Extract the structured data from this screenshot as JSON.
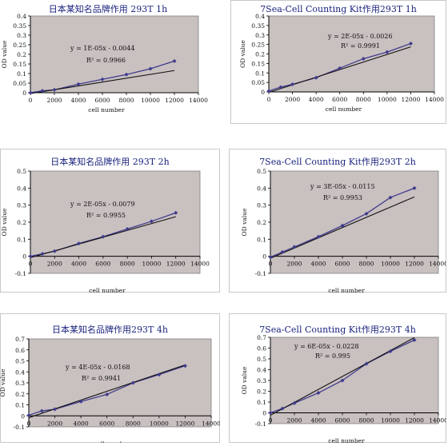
{
  "chart_data": [
    {
      "type": "scatter",
      "title": "日本某知名品牌作用 293T 1h",
      "xlabel": "cell number",
      "ylabel": "OD value",
      "xlim": [
        0,
        14000
      ],
      "ylim": [
        0,
        0.4
      ],
      "xticks": [
        0,
        2000,
        4000,
        6000,
        8000,
        10000,
        12000,
        14000
      ],
      "yticks": [
        0,
        0.05,
        0.1,
        0.15,
        0.2,
        0.25,
        0.3,
        0.35,
        0.4
      ],
      "ytick_labels": [
        "0",
        "0.05",
        "0.1",
        "0.15",
        "0.2",
        "0.25",
        "0.3",
        "0.35",
        "0.4"
      ],
      "x": [
        0,
        1000,
        2000,
        4000,
        6000,
        8000,
        10000,
        12000
      ],
      "y": [
        0,
        0.01,
        0.015,
        0.045,
        0.07,
        0.095,
        0.125,
        0.165
      ],
      "trendline": {
        "slope": 1e-05,
        "intercept": -0.0044
      },
      "equation": "y = 1E-05x - 0.0044",
      "r2": "R² = 0.9966",
      "grid": false
    },
    {
      "type": "scatter",
      "title": "7Sea-Cell Counting Kit作用293T 1h",
      "xlabel": "cell number",
      "ylabel": "OD value",
      "xlim": [
        0,
        14000
      ],
      "ylim": [
        0,
        0.4
      ],
      "xticks": [
        0,
        2000,
        4000,
        6000,
        8000,
        10000,
        12000,
        14000
      ],
      "yticks": [
        0,
        0.05,
        0.1,
        0.15,
        0.2,
        0.25,
        0.3,
        0.35,
        0.4
      ],
      "ytick_labels": [
        "0",
        "0.05",
        "0.1",
        "0.15",
        "0.2",
        "0.25",
        "0.3",
        "0.35",
        "0.4"
      ],
      "x": [
        0,
        1000,
        2000,
        4000,
        6000,
        8000,
        10000,
        12000
      ],
      "y": [
        0.005,
        0.025,
        0.04,
        0.075,
        0.125,
        0.175,
        0.21,
        0.255
      ],
      "trendline": {
        "slope": 2e-05,
        "intercept": -0.0026
      },
      "equation": "y = 2E-05x - 0.0026",
      "r2": "R² = 0.9991",
      "grid": false
    },
    {
      "type": "scatter",
      "title": "日本某知名品牌作用 293T 2h",
      "xlabel": "cell number",
      "ylabel": "OD value",
      "xlim": [
        0,
        14000
      ],
      "ylim": [
        -0.1,
        0.5
      ],
      "xticks": [
        0,
        2000,
        4000,
        6000,
        8000,
        10000,
        12000,
        14000
      ],
      "yticks": [
        -0.1,
        0,
        0.1,
        0.2,
        0.3,
        0.4,
        0.5
      ],
      "ytick_labels": [
        "-0.1",
        "0",
        "0.1",
        "0.2",
        "0.3",
        "0.4",
        "0.5"
      ],
      "x": [
        0,
        1000,
        2000,
        4000,
        6000,
        8000,
        10000,
        12000
      ],
      "y": [
        0,
        0.015,
        0.03,
        0.075,
        0.115,
        0.16,
        0.205,
        0.255
      ],
      "trendline": {
        "slope": 2e-05,
        "intercept": -0.0079
      },
      "equation": "y = 2E-05x - 0.0079",
      "r2": "R² = 0.9955",
      "grid": false
    },
    {
      "type": "scatter",
      "title": "7Sea-Cell Counting Kit作用293T 2h",
      "xlabel": "cell number",
      "ylabel": "OD value",
      "xlim": [
        0,
        14000
      ],
      "ylim": [
        -0.1,
        0.5
      ],
      "xticks": [
        0,
        2000,
        4000,
        6000,
        8000,
        10000,
        12000,
        14000
      ],
      "yticks": [
        -0.1,
        0,
        0.1,
        0.2,
        0.3,
        0.4,
        0.5
      ],
      "ytick_labels": [
        "-0.1",
        "0",
        "0.1",
        "0.2",
        "0.3",
        "0.4",
        "0.5"
      ],
      "x": [
        0,
        1000,
        2000,
        4000,
        6000,
        8000,
        10000,
        12000
      ],
      "y": [
        -0.005,
        0.025,
        0.055,
        0.115,
        0.18,
        0.25,
        0.345,
        0.4
      ],
      "trendline": {
        "slope": 3e-05,
        "intercept": -0.0115
      },
      "equation": "y = 3E-05x - 0.0115",
      "r2": "R² = 0.9953",
      "grid": false
    },
    {
      "type": "scatter",
      "title": "日本某知名品牌作用293T 4h",
      "xlabel": "cell number",
      "ylabel": "OD value",
      "xlim": [
        0,
        14000
      ],
      "ylim": [
        -0.1,
        0.7
      ],
      "xticks": [
        0,
        2000,
        4000,
        6000,
        8000,
        10000,
        12000,
        14000
      ],
      "yticks": [
        -0.1,
        0,
        0.1,
        0.2,
        0.3,
        0.4,
        0.5,
        0.6,
        0.7
      ],
      "ytick_labels": [
        "-0.1",
        "0",
        "0.1",
        "0.2",
        "0.3",
        "0.4",
        "0.5",
        "0.6",
        "0.7"
      ],
      "x": [
        0,
        1000,
        2000,
        4000,
        6000,
        8000,
        10000,
        12000
      ],
      "y": [
        0.005,
        0.045,
        0.06,
        0.13,
        0.195,
        0.3,
        0.375,
        0.455
      ],
      "trendline": {
        "slope": 4e-05,
        "intercept": -0.0168
      },
      "equation": "y = 4E-05x - 0.0168",
      "r2": "R² = 0.9941",
      "grid": false
    },
    {
      "type": "scatter",
      "title": "7Sea-Cell Counting Kit作用293T 4h",
      "xlabel": "cell number",
      "ylabel": "OD value",
      "xlim": [
        0,
        14000
      ],
      "ylim": [
        -0.1,
        0.7
      ],
      "xticks": [
        0,
        2000,
        4000,
        6000,
        8000,
        10000,
        12000,
        14000
      ],
      "yticks": [
        -0.1,
        0,
        0.1,
        0.2,
        0.3,
        0.4,
        0.5,
        0.6,
        0.7
      ],
      "ytick_labels": [
        "-0.1",
        "0",
        "0.1",
        "0.2",
        "0.3",
        "0.4",
        "0.5",
        "0.6",
        "0.7"
      ],
      "x": [
        0,
        1000,
        2000,
        4000,
        6000,
        8000,
        10000,
        12000
      ],
      "y": [
        0,
        0.04,
        0.09,
        0.185,
        0.3,
        0.455,
        0.57,
        0.675
      ],
      "trendline": {
        "slope": 6e-05,
        "intercept": -0.0228
      },
      "equation": "y = 6E-05x - 0.0228",
      "r2": "R² = 0.995",
      "grid": false
    }
  ],
  "colors": {
    "plot_area": "#c9c0c0",
    "title": "#1a237e",
    "data_line": "#3f3b8c",
    "trendline": "#111111",
    "marker": "#3f3b8c"
  }
}
